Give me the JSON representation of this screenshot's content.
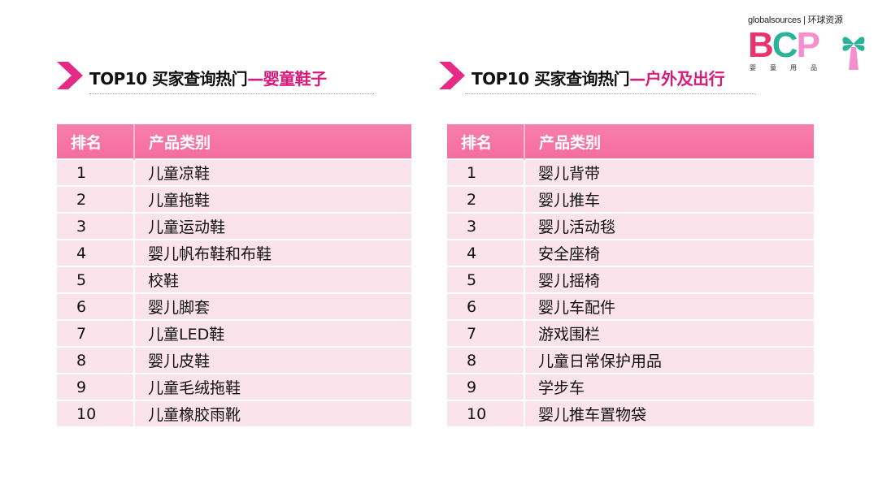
{
  "logo": {
    "brand": "globalsources | 环球资源",
    "letters": "BCP",
    "subtitle": "婴童用品",
    "colors": {
      "B": "#e8336d",
      "C": "#2bb39a",
      "P": "#f58fd0",
      "pinwheel": "#2bb39a"
    }
  },
  "accent_color": "#d81b7a",
  "header_color": "#f77fab",
  "row_color": "#fae3ea",
  "left": {
    "title_prefix": "TOP10 买家查询热门",
    "title_accent": "—婴童鞋子",
    "col_rank": "排名",
    "col_category": "产品类别",
    "rows": [
      {
        "rank": "1",
        "name": "儿童凉鞋"
      },
      {
        "rank": "2",
        "name": "儿童拖鞋"
      },
      {
        "rank": "3",
        "name": "儿童运动鞋"
      },
      {
        "rank": "4",
        "name": "婴儿帆布鞋和布鞋"
      },
      {
        "rank": "5",
        "name": "校鞋"
      },
      {
        "rank": "6",
        "name": "婴儿脚套"
      },
      {
        "rank": "7",
        "name": "儿童LED鞋"
      },
      {
        "rank": "8",
        "name": "婴儿皮鞋"
      },
      {
        "rank": "9",
        "name": "儿童毛绒拖鞋"
      },
      {
        "rank": "10",
        "name": "儿童橡胶雨靴"
      }
    ]
  },
  "right": {
    "title_prefix": "TOP10 买家查询热门",
    "title_accent": "—户外及出行",
    "col_rank": "排名",
    "col_category": "产品类别",
    "rows": [
      {
        "rank": "1",
        "name": "婴儿背带"
      },
      {
        "rank": "2",
        "name": "婴儿推车"
      },
      {
        "rank": "3",
        "name": "婴儿活动毯"
      },
      {
        "rank": "4",
        "name": "安全座椅"
      },
      {
        "rank": "5",
        "name": "婴儿摇椅"
      },
      {
        "rank": "6",
        "name": "婴儿车配件"
      },
      {
        "rank": "7",
        "name": "游戏围栏"
      },
      {
        "rank": "8",
        "name": "儿童日常保护用品"
      },
      {
        "rank": "9",
        "name": "学步车"
      },
      {
        "rank": "10",
        "name": "婴儿推车置物袋"
      }
    ]
  }
}
